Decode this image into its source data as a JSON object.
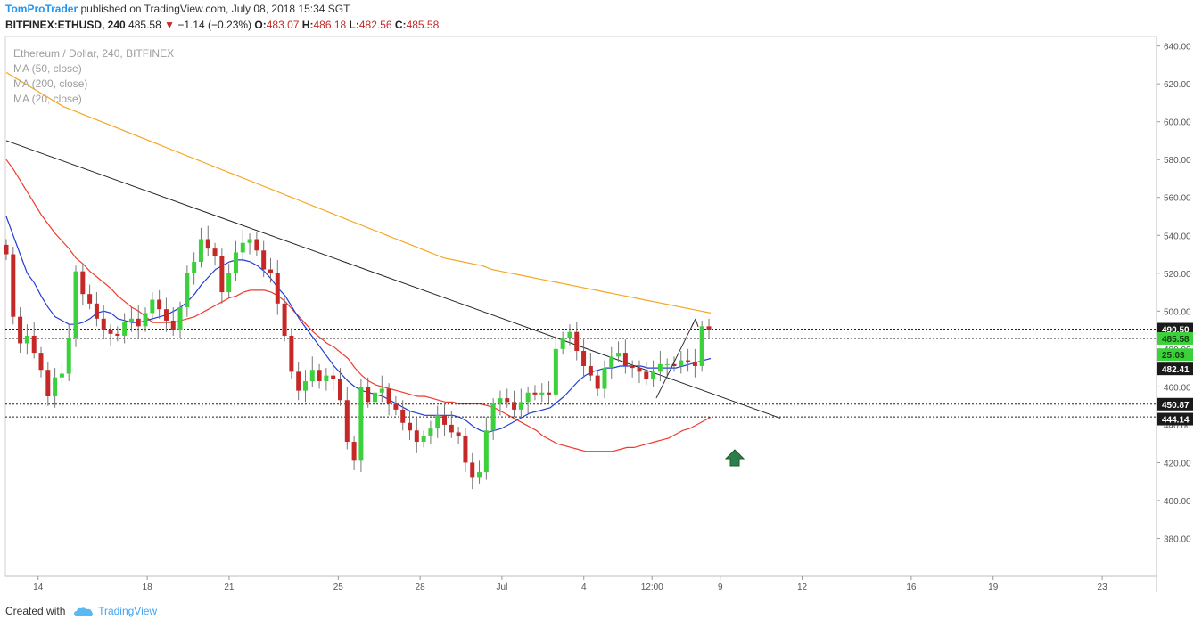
{
  "header": {
    "author": "TomProTrader",
    "published": "published on TradingView.com, July 08, 2018 15:34 SGT",
    "symbol": "BITFINEX:ETHUSD, 240",
    "last": "485.58",
    "change_arrow": "▼",
    "change": "−1.14 (−0.23%)",
    "o_label": "O:",
    "o_val": "483.07",
    "h_label": "H:",
    "h_val": "486.18",
    "l_label": "L:",
    "l_val": "482.56",
    "c_label": "C:",
    "c_val": "485.58"
  },
  "footer": {
    "created_with": "Created with",
    "brand": "TradingView",
    "logo_icon": "cloud-icon"
  },
  "colors": {
    "up": "#3cd13c",
    "down": "#c62828",
    "ma50": "#ef3b2c",
    "ma200": "#f5a623",
    "ma20": "#1f3ed6",
    "trendline": "#222222",
    "arrow_up": "#2e7d4f"
  },
  "chart_data": {
    "type": "candlestick",
    "title": "Ethereum / Dollar, 240, BITFINEX",
    "legend": [
      "MA (50, close)",
      "MA (200, close)",
      "MA (20, close)"
    ],
    "ylim": [
      360,
      645
    ],
    "y_ticks": [
      380,
      400,
      420,
      440,
      460,
      480,
      500,
      520,
      540,
      560,
      580,
      600,
      620,
      640
    ],
    "y_tick_labels": [
      "380.00",
      "400.00",
      "420.00",
      "440.00",
      "460.00",
      "480.00",
      "500.00",
      "520.00",
      "540.00",
      "560.00",
      "580.00",
      "600.00",
      "620.00",
      "640.00"
    ],
    "x_range_days": [
      12.8,
      24.3
    ],
    "x_ticks": [
      {
        "label": "14",
        "day": 14
      },
      {
        "label": "18",
        "day": 18
      },
      {
        "label": "21",
        "day": 21
      },
      {
        "label": "25",
        "day": 25
      },
      {
        "label": "28",
        "day": 28
      },
      {
        "label": "Jul",
        "day": 31
      },
      {
        "label": "4",
        "day": 34
      },
      {
        "label": "12:00",
        "day": 36.5
      },
      {
        "label": "9",
        "day": 39
      },
      {
        "label": "12",
        "day": 42
      },
      {
        "label": "16",
        "day": 46
      },
      {
        "label": "19",
        "day": 49
      },
      {
        "label": "23",
        "day": 53
      }
    ],
    "x_start_day": 12.8,
    "x_end_day": 54.8,
    "candles_close": [
      530,
      497,
      483,
      487,
      478,
      469,
      455,
      465,
      467,
      486,
      521,
      509,
      504,
      496,
      490,
      488,
      487,
      494,
      496,
      492,
      499,
      506,
      501,
      495,
      490,
      502,
      520,
      526,
      538,
      533,
      529,
      510,
      520,
      531,
      536,
      538,
      532,
      522,
      520,
      504,
      487,
      468,
      458,
      463,
      469,
      463,
      466,
      464,
      453,
      431,
      421,
      460,
      452,
      457,
      459,
      451,
      448,
      441,
      437,
      431,
      434,
      438,
      445,
      440,
      436,
      434,
      420,
      412,
      415,
      437,
      451,
      454,
      452,
      448,
      452,
      457,
      456,
      457,
      456,
      480,
      486,
      489,
      479,
      471,
      466,
      459,
      470,
      476,
      478,
      471,
      470,
      468,
      464,
      468,
      472,
      472,
      471,
      474,
      473,
      471,
      492,
      490
    ],
    "candles_open": [
      535,
      530,
      497,
      483,
      487,
      478,
      469,
      455,
      465,
      467,
      486,
      521,
      509,
      504,
      496,
      490,
      488,
      487,
      494,
      496,
      492,
      499,
      506,
      501,
      495,
      490,
      502,
      520,
      526,
      538,
      533,
      529,
      510,
      520,
      531,
      536,
      538,
      532,
      522,
      520,
      504,
      487,
      468,
      458,
      463,
      469,
      463,
      466,
      464,
      453,
      431,
      421,
      460,
      452,
      457,
      459,
      451,
      448,
      441,
      437,
      431,
      434,
      438,
      445,
      440,
      436,
      434,
      420,
      412,
      415,
      437,
      451,
      454,
      452,
      448,
      452,
      457,
      456,
      457,
      456,
      480,
      486,
      489,
      479,
      471,
      466,
      459,
      470,
      476,
      478,
      471,
      470,
      468,
      464,
      468,
      472,
      472,
      471,
      474,
      473,
      471,
      492
    ],
    "ma50": [
      580,
      575,
      569,
      563,
      557,
      551,
      546,
      541,
      537,
      533,
      528,
      525,
      521,
      518,
      515,
      512,
      508,
      505,
      502,
      500,
      497,
      494,
      494,
      494,
      494,
      495,
      496,
      497,
      499,
      501,
      503,
      505,
      507,
      508,
      510,
      511,
      511,
      511,
      510,
      508,
      505,
      501,
      497,
      493,
      489,
      486,
      483,
      481,
      478,
      475,
      470,
      466,
      463,
      461,
      460,
      459,
      458,
      457,
      456,
      455,
      455,
      454,
      453,
      452,
      452,
      451,
      451,
      451,
      451,
      450,
      449,
      447,
      445,
      443,
      441,
      439,
      437,
      434,
      432,
      430,
      429,
      428,
      427,
      426,
      426,
      426,
      426,
      426,
      427,
      428,
      428,
      429,
      430,
      431,
      432,
      433,
      435,
      437,
      438,
      440,
      442,
      444
    ],
    "ma200": [
      626,
      623,
      620,
      617,
      614,
      611,
      608,
      606,
      604,
      602,
      600,
      598,
      596,
      594,
      592,
      590,
      588,
      586,
      584,
      582,
      580,
      578,
      576,
      574,
      572,
      570,
      568,
      566,
      564,
      562,
      560,
      558,
      556,
      554,
      552,
      550,
      548,
      546,
      544,
      542,
      540,
      538,
      536,
      534,
      532,
      530,
      528,
      527,
      526,
      525,
      524,
      522,
      521,
      520,
      519,
      518,
      517,
      516,
      515,
      514,
      513,
      512,
      511,
      510,
      509,
      508,
      507,
      506,
      505,
      504,
      503,
      502,
      501,
      500,
      499
    ],
    "ma20": [
      550,
      540,
      530,
      520,
      515,
      508,
      502,
      497,
      495,
      493,
      493,
      494,
      496,
      499,
      500,
      499,
      496,
      495,
      494,
      494,
      495,
      496,
      497,
      498,
      500,
      502,
      505,
      509,
      514,
      518,
      522,
      524,
      526,
      527,
      527,
      526,
      524,
      521,
      517,
      512,
      508,
      502,
      496,
      491,
      486,
      481,
      476,
      471,
      467,
      463,
      460,
      458,
      457,
      456,
      455,
      453,
      451,
      449,
      447,
      446,
      445,
      445,
      445,
      445,
      445,
      444,
      442,
      439,
      437,
      436,
      437,
      438,
      440,
      442,
      444,
      446,
      447,
      448,
      449,
      452,
      455,
      459,
      463,
      466,
      468,
      469,
      470,
      470,
      471,
      471,
      471,
      471,
      470,
      470,
      470,
      470,
      470,
      471,
      472,
      473,
      474,
      475
    ],
    "trendline": [
      {
        "day": 12.8,
        "price": 590
      },
      {
        "day": 40.2,
        "price": 443.5
      }
    ],
    "horizontal_levels": [
      {
        "price": 490.5,
        "label": "490.50"
      },
      {
        "price": 485.58,
        "label": "485.58"
      },
      {
        "price": 450.87,
        "label": "450.87"
      },
      {
        "price": 444.14,
        "label": "444.14"
      }
    ],
    "price_tags": [
      {
        "label": "490.50",
        "price": 490.5,
        "style": "dark"
      },
      {
        "label": "485.58",
        "price": 485.58,
        "style": "green"
      },
      {
        "label": "25:03",
        "price": 477.0,
        "style": "green"
      },
      {
        "label": "482.41",
        "price": 469.5,
        "style": "dark"
      },
      {
        "label": "450.87",
        "price": 450.87,
        "style": "dark"
      },
      {
        "label": "444.14",
        "price": 443.0,
        "style": "dark"
      }
    ]
  }
}
